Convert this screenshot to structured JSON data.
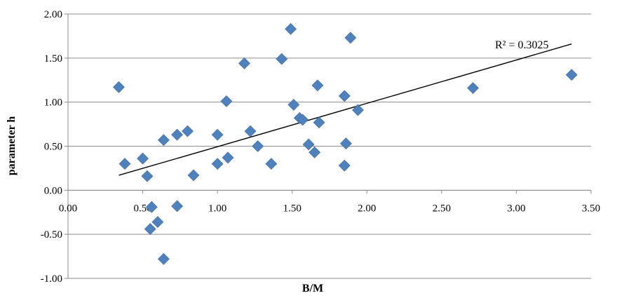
{
  "chart_data": {
    "type": "scatter",
    "title": "",
    "xlabel": "B/M",
    "ylabel": "parameter h",
    "xlim": [
      0,
      3.5
    ],
    "ylim": [
      -1,
      2
    ],
    "xticks": [
      "0.00",
      "0.50",
      "1.00",
      "1.50",
      "2.00",
      "2.50",
      "3.00",
      "3.50"
    ],
    "yticks": [
      "2.00",
      "1.50",
      "1.00",
      "0.50",
      "0.00",
      "-0.50",
      "-1.00"
    ],
    "grid": "horizontal",
    "marker_color": "#4F81BD",
    "trendline": {
      "x_start": 0.34,
      "y_start": 0.17,
      "x_end": 3.37,
      "y_end": 1.66
    },
    "annotation": "R² = 0.3025",
    "points": [
      {
        "x": 0.34,
        "y": 1.17
      },
      {
        "x": 0.38,
        "y": 0.3
      },
      {
        "x": 0.5,
        "y": 0.36
      },
      {
        "x": 0.53,
        "y": 0.16
      },
      {
        "x": 0.56,
        "y": -0.19
      },
      {
        "x": 0.55,
        "y": -0.44
      },
      {
        "x": 0.6,
        "y": -0.36
      },
      {
        "x": 0.64,
        "y": 0.57
      },
      {
        "x": 0.64,
        "y": -0.78
      },
      {
        "x": 0.73,
        "y": 0.63
      },
      {
        "x": 0.73,
        "y": -0.18
      },
      {
        "x": 0.8,
        "y": 0.67
      },
      {
        "x": 0.84,
        "y": 0.17
      },
      {
        "x": 1.0,
        "y": 0.63
      },
      {
        "x": 1.0,
        "y": 0.3
      },
      {
        "x": 1.06,
        "y": 1.01
      },
      {
        "x": 1.07,
        "y": 0.37
      },
      {
        "x": 1.18,
        "y": 1.44
      },
      {
        "x": 1.22,
        "y": 0.67
      },
      {
        "x": 1.27,
        "y": 0.5
      },
      {
        "x": 1.36,
        "y": 0.3
      },
      {
        "x": 1.43,
        "y": 1.49
      },
      {
        "x": 1.49,
        "y": 1.83
      },
      {
        "x": 1.51,
        "y": 0.97
      },
      {
        "x": 1.55,
        "y": 0.82
      },
      {
        "x": 1.57,
        "y": 0.8
      },
      {
        "x": 1.61,
        "y": 0.52
      },
      {
        "x": 1.65,
        "y": 0.43
      },
      {
        "x": 1.67,
        "y": 1.19
      },
      {
        "x": 1.68,
        "y": 0.77
      },
      {
        "x": 1.85,
        "y": 1.07
      },
      {
        "x": 1.85,
        "y": 0.28
      },
      {
        "x": 1.86,
        "y": 0.53
      },
      {
        "x": 1.89,
        "y": 1.73
      },
      {
        "x": 1.94,
        "y": 0.91
      },
      {
        "x": 2.71,
        "y": 1.16
      },
      {
        "x": 3.37,
        "y": 1.31
      }
    ]
  }
}
